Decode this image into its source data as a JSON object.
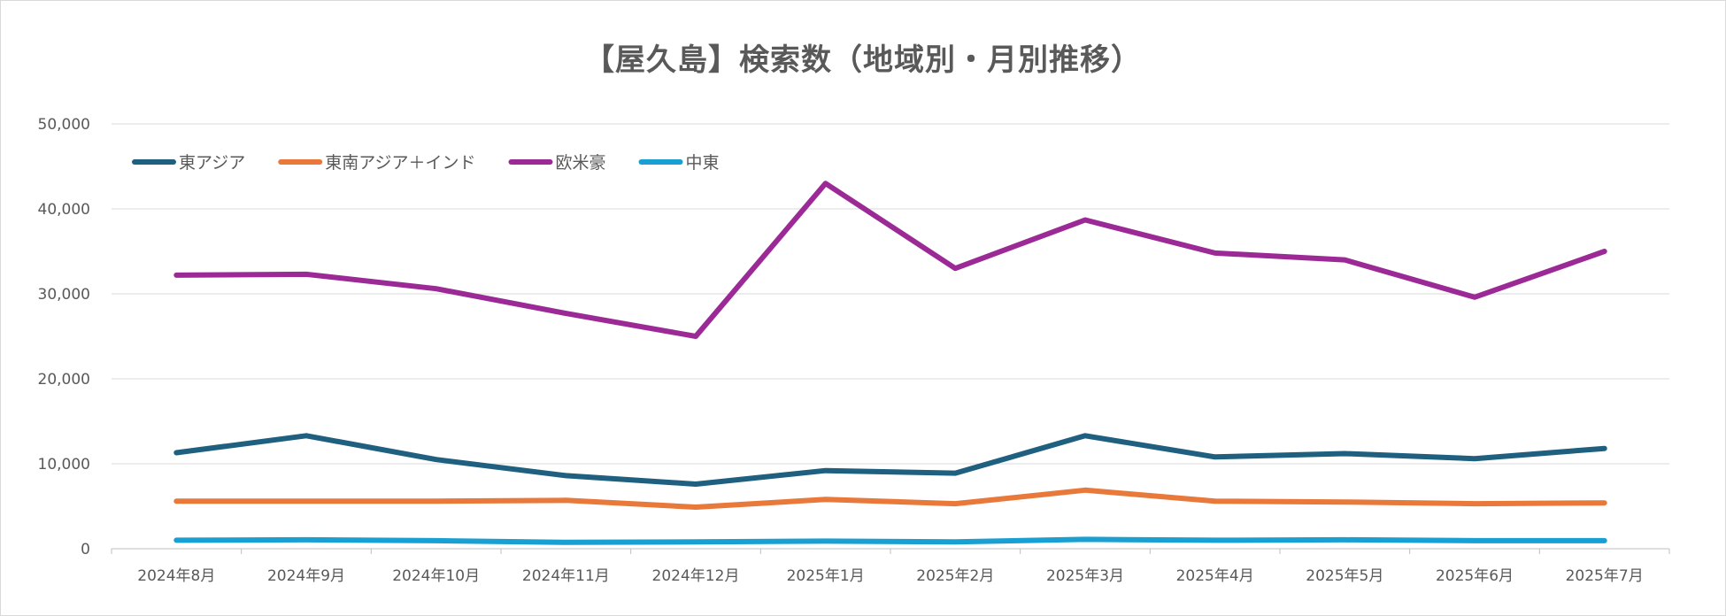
{
  "title": "【屋久島】検索数（地域別・月別推移）",
  "chart_data": {
    "type": "line",
    "title": "【屋久島】検索数（地域別・月別推移）",
    "categories": [
      "2024年8月",
      "2024年9月",
      "2024年10月",
      "2024年11月",
      "2024年12月",
      "2025年1月",
      "2025年2月",
      "2025年3月",
      "2025年4月",
      "2025年5月",
      "2025年6月",
      "2025年7月"
    ],
    "ylim": [
      0,
      50000
    ],
    "yticks": [
      0,
      10000,
      20000,
      30000,
      40000,
      50000
    ],
    "ytick_labels": [
      "0",
      "10,000",
      "20,000",
      "30,000",
      "40,000",
      "50,000"
    ],
    "grid": true,
    "legend_position": "top-left",
    "series": [
      {
        "name": "東アジア",
        "color": "#1f5f7f",
        "values": [
          11300,
          13300,
          10500,
          8600,
          7600,
          9200,
          8900,
          13300,
          10800,
          11200,
          10600,
          11800
        ]
      },
      {
        "name": "東南アジア＋インド",
        "color": "#e8793a",
        "values": [
          5600,
          5600,
          5600,
          5700,
          4900,
          5800,
          5300,
          6900,
          5600,
          5500,
          5300,
          5400
        ]
      },
      {
        "name": "欧米豪",
        "color": "#9c2a96",
        "values": [
          32200,
          32300,
          30600,
          27700,
          25000,
          43000,
          33000,
          38700,
          34800,
          34000,
          29600,
          35000
        ]
      },
      {
        "name": "中東",
        "color": "#1a9fd2",
        "values": [
          1000,
          1050,
          950,
          750,
          800,
          900,
          800,
          1100,
          1000,
          1050,
          950,
          950
        ]
      }
    ]
  }
}
